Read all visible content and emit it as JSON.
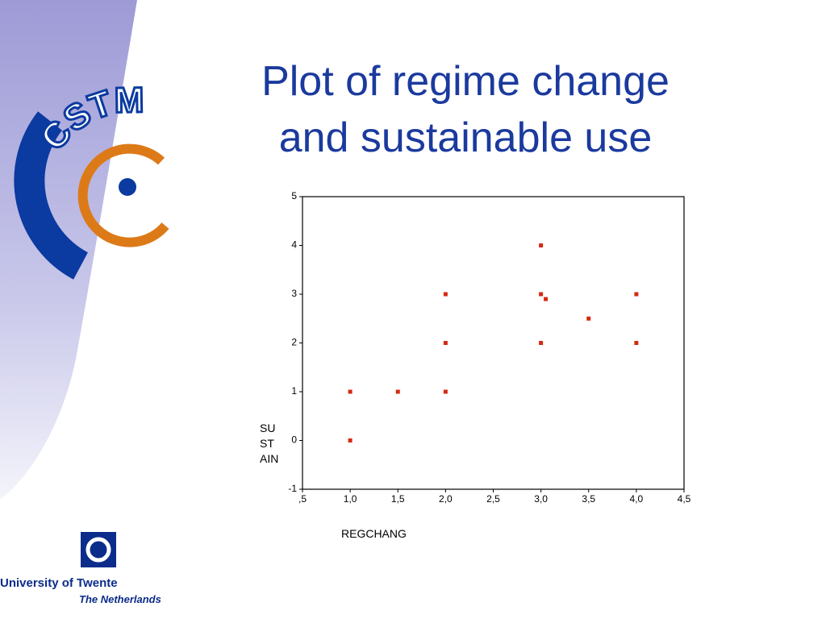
{
  "logos": {
    "left": "CSTM",
    "university": "University of Twente",
    "country": "The Netherlands"
  },
  "chart_data": {
    "type": "scatter",
    "title": "Plot of regime change and sustainable use",
    "xlabel": "REGCHANG",
    "ylabel": "SUSTAIN",
    "x": [
      1,
      1,
      1.5,
      2,
      2,
      2,
      3,
      3,
      3,
      3.05,
      3.5,
      4,
      4
    ],
    "values": [
      1,
      0,
      1,
      3,
      2,
      1,
      4,
      3,
      2,
      2.9,
      2.5,
      3,
      2
    ],
    "color": "#d42a10",
    "xlim": [
      0.5,
      4.5
    ],
    "xticks": [
      {
        "value": 0.5,
        "label": ",5"
      },
      {
        "value": 1,
        "label": "1,0"
      },
      {
        "value": 1.5,
        "label": "1,5"
      },
      {
        "value": 2,
        "label": "2,0"
      },
      {
        "value": 2.5,
        "label": "2,5"
      },
      {
        "value": 3,
        "label": "3,0"
      },
      {
        "value": 3.5,
        "label": "3,5"
      },
      {
        "value": 4,
        "label": "4,0"
      },
      {
        "value": 4.5,
        "label": "4,5"
      }
    ],
    "ylim": [
      -1,
      5
    ],
    "yticks": [
      -1,
      0,
      1,
      2,
      3,
      4,
      5
    ],
    "grid": false
  }
}
